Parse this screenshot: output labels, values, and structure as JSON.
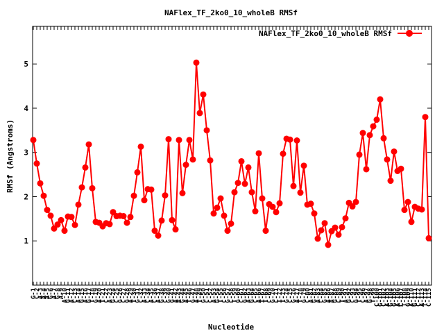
{
  "chart_data": {
    "type": "line",
    "title": "NAFlex_TF_2ko0_10_wholeB RMSf",
    "xlabel": "Nucleotide",
    "ylabel": "RMSf (Angstroms)",
    "ylim": [
      0,
      5.85
    ],
    "yticks": [
      1,
      2,
      3,
      4,
      5
    ],
    "grid": false,
    "legend": "top-right",
    "series": [
      {
        "name": "NAFlex_TF_2ko0_10_wholeB RMSf",
        "color": "#ff0000",
        "values": [
          3.28,
          2.75,
          2.3,
          2.02,
          1.7,
          1.57,
          1.28,
          1.37,
          1.47,
          1.23,
          1.55,
          1.54,
          1.36,
          1.82,
          2.21,
          2.66,
          3.18,
          2.19,
          1.43,
          1.41,
          1.33,
          1.4,
          1.38,
          1.65,
          1.56,
          1.57,
          1.56,
          1.41,
          1.54,
          2.02,
          2.55,
          3.13,
          1.92,
          2.17,
          2.16,
          1.23,
          1.12,
          1.46,
          2.03,
          3.3,
          1.47,
          1.26,
          3.28,
          2.08,
          2.72,
          3.28,
          2.84,
          5.03,
          3.89,
          4.31,
          3.5,
          2.82,
          1.62,
          1.75,
          1.96,
          1.57,
          1.23,
          1.39,
          2.1,
          2.31,
          2.8,
          2.29,
          2.66,
          2.1,
          1.67,
          2.98,
          1.96,
          1.23,
          1.83,
          1.77,
          1.65,
          1.85,
          2.97,
          3.31,
          3.29,
          2.24,
          3.27,
          2.09,
          2.7,
          1.82,
          1.84,
          1.62,
          1.05,
          1.24,
          1.4,
          0.91,
          1.22,
          1.3,
          1.14,
          1.31,
          1.51,
          1.86,
          1.78,
          1.88,
          2.95,
          3.44,
          2.62,
          3.39,
          3.59,
          3.74,
          4.2,
          3.32,
          2.84,
          2.36,
          3.02,
          2.58,
          2.63,
          1.7,
          1.88,
          1.43,
          1.77,
          1.73,
          1.71,
          3.8,
          1.06
        ]
      }
    ],
    "xtick_labels": [
      "G-1",
      "C-2",
      "A-3",
      "A-4",
      "A-5",
      "G-6",
      "A-7",
      "G-8",
      "A-9",
      "A-10",
      "G-11",
      "A-12",
      "C-13",
      "A-14",
      "G-15",
      "A-16",
      "G-17",
      "T-18",
      "G-19",
      "A-20",
      "T-21",
      "C-22",
      "A-23",
      "G-24",
      "C-25",
      "G-26",
      "C-27",
      "G-28",
      "A-29",
      "T-30",
      "G-31",
      "C-32",
      "A-33",
      "C-34",
      "A-35",
      "C-36",
      "A-37",
      "G-38",
      "C-39",
      "G-40",
      "G-41",
      "A-42",
      "A-43",
      "G-44",
      "A-45",
      "T-46",
      "G-47",
      "A-48",
      "T-49",
      "G-50",
      "C-51",
      "C-52",
      "A-53",
      "G-54",
      "T-55",
      "C-56",
      "G-57",
      "C-58",
      "T-59",
      "G-60",
      "C-61",
      "G-62",
      "A-63",
      "G-64",
      "C-65",
      "A-66",
      "T-67",
      "T-68",
      "C-69",
      "G-70",
      "C-71",
      "T-72",
      "T-73",
      "G-74",
      "C-75",
      "G-76",
      "A-77",
      "T-78",
      "G-79",
      "C-80",
      "A-81",
      "G-82",
      "A-83",
      "C-84",
      "G-85",
      "A-86",
      "A-87",
      "G-88",
      "C-89",
      "T-90",
      "A-91",
      "G-92",
      "C-93",
      "G-94",
      "T-95",
      "C-96",
      "A-97",
      "G-98",
      "T-99",
      "C-100",
      "G-101",
      "C-102",
      "A-103",
      "G-104",
      "G-105",
      "A-106",
      "C-107",
      "T-108",
      "G-109",
      "A-110",
      "G-111",
      "C-112",
      "A-113",
      "T-114",
      "C-115"
    ]
  }
}
